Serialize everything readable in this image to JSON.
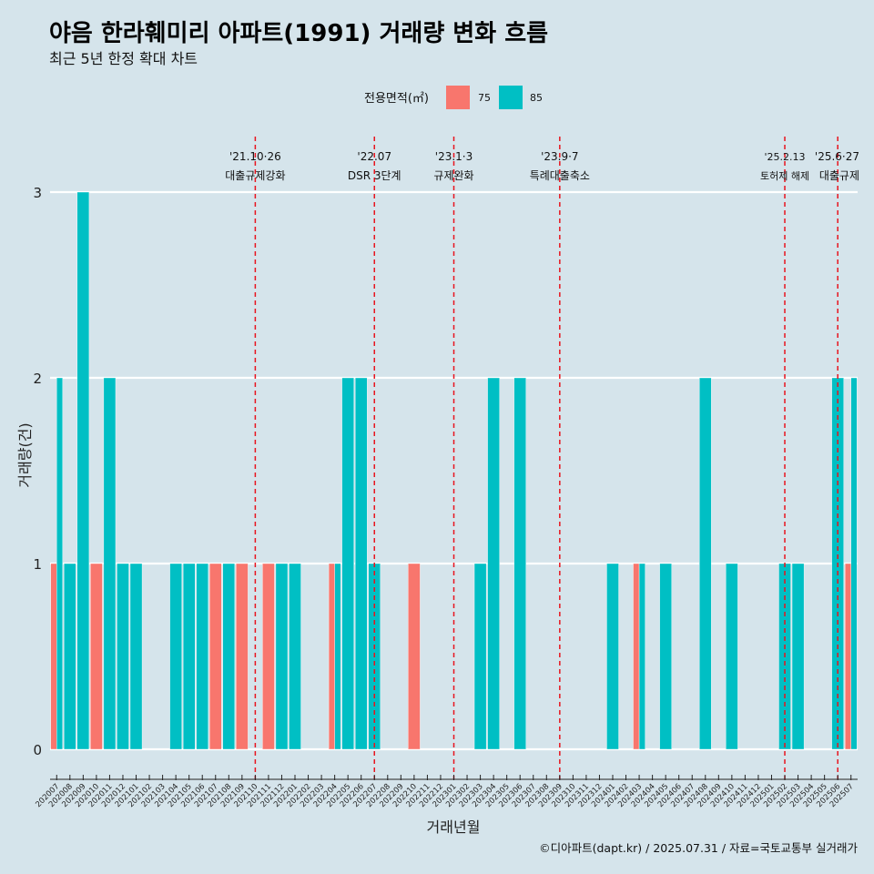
{
  "title": "야음 한라훼미리 아파트(1991) 거래량 변화 흐름",
  "subtitle": "최근 5년 한정 확대 차트",
  "caption": "©디아파트(dapt.kr) / 2025.07.31 / 자료=국토교통부 실거래가",
  "colors": {
    "75": "#f8766d",
    "85": "#00bfc4",
    "event_line": "#e8141e",
    "background": "#d5e4eb",
    "grid": "#ffffff"
  },
  "chart_data": {
    "type": "bar",
    "xlabel": "거래년월",
    "ylabel": "거래량(건)",
    "ylim": [
      0,
      3
    ],
    "yticks": [
      0,
      1,
      2,
      3
    ],
    "legend": {
      "title": "전용면적(㎡)",
      "entries": [
        "75",
        "85"
      ],
      "placement": "top"
    },
    "grid": true,
    "categories": [
      "202007",
      "202008",
      "202009",
      "202010",
      "202011",
      "202012",
      "202101",
      "202102",
      "202103",
      "202104",
      "202105",
      "202106",
      "202107",
      "202108",
      "202109",
      "202110",
      "202111",
      "202112",
      "202201",
      "202202",
      "202203",
      "202204",
      "202205",
      "202206",
      "202207",
      "202208",
      "202209",
      "202210",
      "202211",
      "202212",
      "202301",
      "202302",
      "202303",
      "202304",
      "202305",
      "202306",
      "202307",
      "202308",
      "202309",
      "202310",
      "202311",
      "202312",
      "202401",
      "202402",
      "202403",
      "202404",
      "202405",
      "202406",
      "202407",
      "202408",
      "202409",
      "202410",
      "202411",
      "202412",
      "202501",
      "202502",
      "202503",
      "202504",
      "202505",
      "202506",
      "202507"
    ],
    "series": [
      {
        "name": "75",
        "values": [
          1,
          0,
          0,
          1,
          0,
          0,
          0,
          0,
          0,
          0,
          0,
          0,
          1,
          0,
          1,
          0,
          1,
          0,
          0,
          0,
          0,
          1,
          0,
          0,
          0,
          0,
          0,
          1,
          0,
          0,
          0,
          0,
          0,
          0,
          0,
          0,
          0,
          0,
          0,
          0,
          0,
          0,
          0,
          0,
          1,
          0,
          0,
          0,
          0,
          0,
          0,
          0,
          0,
          0,
          0,
          0,
          0,
          0,
          0,
          0,
          1
        ]
      },
      {
        "name": "85",
        "values": [
          2,
          1,
          3,
          0,
          2,
          1,
          1,
          0,
          0,
          1,
          1,
          1,
          0,
          1,
          0,
          0,
          0,
          1,
          1,
          0,
          0,
          1,
          2,
          2,
          1,
          0,
          0,
          0,
          0,
          0,
          0,
          0,
          1,
          2,
          0,
          2,
          0,
          0,
          0,
          0,
          0,
          0,
          1,
          0,
          1,
          0,
          1,
          0,
          0,
          2,
          0,
          1,
          0,
          0,
          0,
          1,
          1,
          0,
          0,
          2,
          2
        ]
      }
    ],
    "events": [
      {
        "date": "'21.10·26",
        "label": "대출규제강화",
        "month": "202110"
      },
      {
        "date": "'22.07",
        "label": "DSR 3단계",
        "month": "202207"
      },
      {
        "date": "'23.1·3",
        "label": "규제완화",
        "month": "202301"
      },
      {
        "date": "'23.9·7",
        "label": "특례대출축소",
        "month": "202309"
      },
      {
        "date": "'25.2.13",
        "label": "토허제 해제",
        "month": "202502"
      },
      {
        "date": "'25.6·27",
        "label": "대출규제",
        "month": "202506"
      }
    ]
  }
}
